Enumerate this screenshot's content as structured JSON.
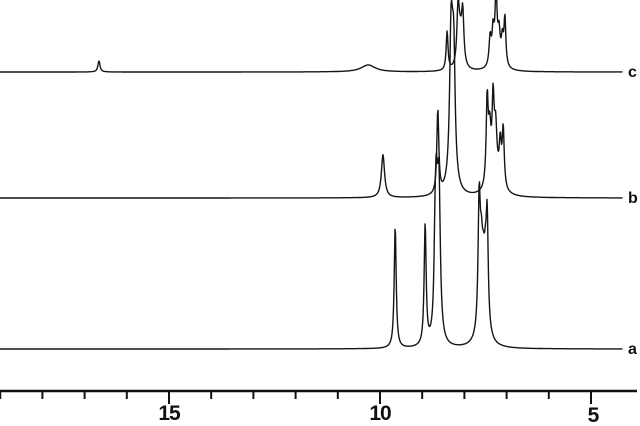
{
  "figure": {
    "kind": "stacked 1H-NMR spectra",
    "background_color": "#ffffff",
    "trace_color": "#151515",
    "series_labels": [
      "c",
      "b",
      "a"
    ]
  },
  "chart_data": {
    "type": "line",
    "title": "",
    "xlabel": "",
    "ylabel": "",
    "x_axis": {
      "unit": "ppm",
      "range_left": 19.0,
      "range_right": 4.0,
      "major_ticks": [
        15,
        10,
        5
      ],
      "minor_ticks": [
        19,
        18,
        17,
        16,
        14,
        13,
        12,
        11,
        9,
        8,
        7,
        6
      ],
      "tick_labels": [
        "15",
        "10",
        "5"
      ]
    },
    "series": [
      {
        "name": "c",
        "baseline_y": 72,
        "peaks": [
          {
            "ppm": 16.66,
            "h": 11,
            "w": 0.03
          },
          {
            "ppm": 10.28,
            "h": 7,
            "w": 0.2
          },
          {
            "ppm": 8.41,
            "h": 39,
            "w": 0.026
          },
          {
            "ppm": 8.15,
            "h": 54,
            "w": 0.032
          },
          {
            "ppm": 8.04,
            "h": 50,
            "w": 0.032
          },
          {
            "ppm": 8.1,
            "h": 30,
            "w": 0.055
          },
          {
            "ppm": 7.39,
            "h": 28,
            "w": 0.03
          },
          {
            "ppm": 7.32,
            "h": 32,
            "w": 0.03
          },
          {
            "ppm": 7.25,
            "h": 66,
            "w": 0.026
          },
          {
            "ppm": 7.18,
            "h": 26,
            "w": 0.03
          },
          {
            "ppm": 7.1,
            "h": 24,
            "w": 0.03
          },
          {
            "ppm": 7.04,
            "h": 47,
            "w": 0.026
          },
          {
            "ppm": 7.22,
            "h": 12,
            "w": 0.12
          }
        ]
      },
      {
        "name": "b",
        "baseline_y": 198,
        "peaks": [
          {
            "ppm": 9.93,
            "h": 43,
            "w": 0.045
          },
          {
            "ppm": 8.63,
            "h": 84,
            "w": 0.028
          },
          {
            "ppm": 8.32,
            "h": 97,
            "w": 0.036
          },
          {
            "ppm": 8.25,
            "h": 93,
            "w": 0.036
          },
          {
            "ppm": 8.29,
            "h": 75,
            "w": 0.05
          },
          {
            "ppm": 8.29,
            "h": 18,
            "w": 0.1
          },
          {
            "ppm": 7.46,
            "h": 85,
            "w": 0.028
          },
          {
            "ppm": 7.4,
            "h": 48,
            "w": 0.035
          },
          {
            "ppm": 7.32,
            "h": 72,
            "w": 0.028
          },
          {
            "ppm": 7.26,
            "h": 45,
            "w": 0.035
          },
          {
            "ppm": 7.15,
            "h": 40,
            "w": 0.03
          },
          {
            "ppm": 7.08,
            "h": 58,
            "w": 0.028
          },
          {
            "ppm": 7.28,
            "h": 20,
            "w": 0.14
          }
        ]
      },
      {
        "name": "a",
        "baseline_y": 349,
        "peaks": [
          {
            "ppm": 9.64,
            "h": 122,
            "w": 0.028
          },
          {
            "ppm": 8.93,
            "h": 121,
            "w": 0.028
          },
          {
            "ppm": 8.7,
            "h": 45,
            "w": 0.024
          },
          {
            "ppm": 8.67,
            "h": 112,
            "w": 0.035
          },
          {
            "ppm": 8.6,
            "h": 106,
            "w": 0.035
          },
          {
            "ppm": 8.63,
            "h": 70,
            "w": 0.05
          },
          {
            "ppm": 7.65,
            "h": 125,
            "w": 0.03
          },
          {
            "ppm": 7.6,
            "h": 55,
            "w": 0.035
          },
          {
            "ppm": 7.55,
            "h": 45,
            "w": 0.045
          },
          {
            "ppm": 7.5,
            "h": 42,
            "w": 0.035
          },
          {
            "ppm": 7.46,
            "h": 100,
            "w": 0.028
          },
          {
            "ppm": 7.55,
            "h": 22,
            "w": 0.12
          }
        ]
      }
    ]
  }
}
